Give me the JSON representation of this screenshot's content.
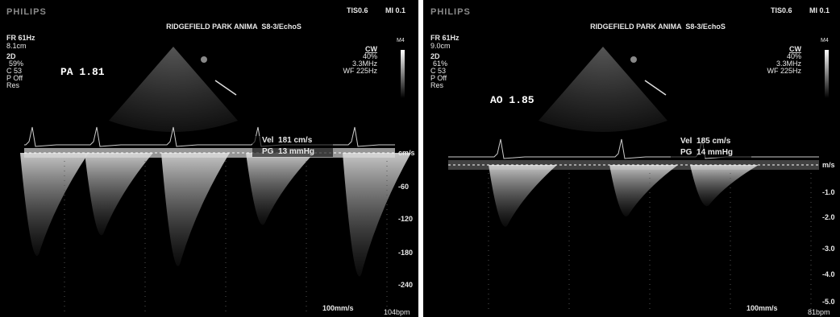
{
  "panels": [
    {
      "brand": "PHILIPS",
      "tis": "TIS0.6",
      "mi": "MI 0.1",
      "title": "RIDGEFIELD PARK ANIMA  S8-3/EchoS",
      "left_params": [
        "FR 61Hz",
        "8.1cm",
        "2D",
        "59%",
        "C 53",
        "P Off",
        "Res"
      ],
      "measurement": "PA 1.81",
      "right_params": [
        "CW",
        "40%",
        "3.3MHz",
        "WF 225Hz"
      ],
      "map": "M4",
      "velocity": "Vel  181 cm/s",
      "gradient": "PG  13 mmHg",
      "scale_unit": "cm/s",
      "scale_labels": [
        "-60",
        "-120",
        "-180",
        "-240"
      ],
      "sweep": "100mm/s",
      "heart_rate": "104bpm"
    },
    {
      "brand": "PHILIPS",
      "tis": "TIS0.6",
      "mi": "MI 0.1",
      "title": "RIDGEFIELD PARK ANIMA  S8-3/EchoS",
      "left_params": [
        "FR 61Hz",
        "9.0cm",
        "2D",
        "61%",
        "C 53",
        "P Off",
        "Res"
      ],
      "measurement": "AO 1.85",
      "right_params": [
        "CW",
        "40%",
        "3.3MHz",
        "WF 225Hz"
      ],
      "map": "M4",
      "velocity": "Vel  185 cm/s",
      "gradient": "PG  14 mmHg",
      "scale_unit": "m/s",
      "scale_labels": [
        "-1.0",
        "-2.0",
        "-3.0",
        "-4.0",
        "-5.0"
      ],
      "sweep": "100mm/s",
      "heart_rate": "81bpm"
    }
  ]
}
